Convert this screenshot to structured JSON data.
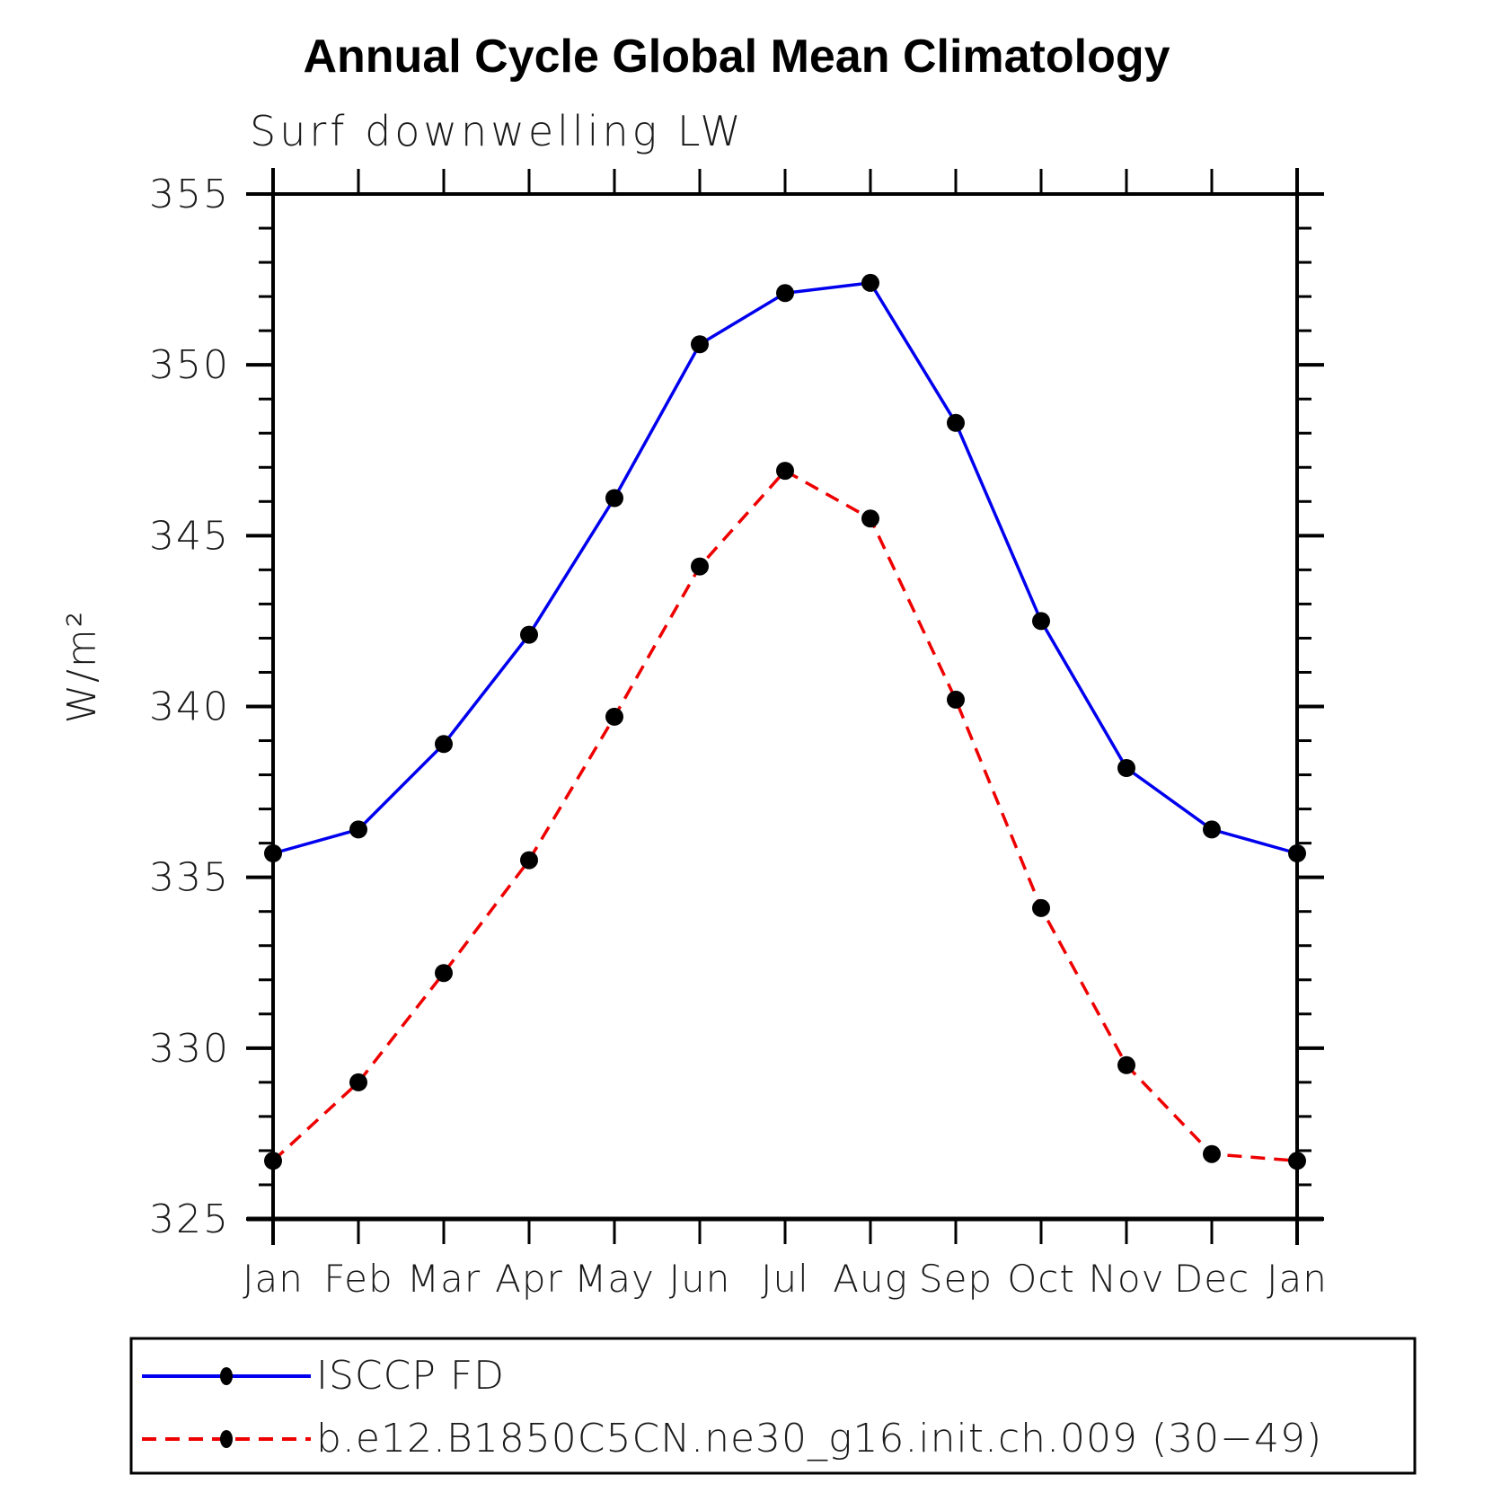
{
  "accent_colors": {
    "series1": "#0000ee",
    "series2": "#ee0000",
    "marker": "#000000",
    "axis": "#000000"
  },
  "chart_data": {
    "type": "line",
    "title": "Annual Cycle Global Mean Climatology",
    "subtitle": "Surf downwelling LW",
    "xlabel": "",
    "ylabel": "W/m²",
    "categories": [
      "Jan",
      "Feb",
      "Mar",
      "Apr",
      "May",
      "Jun",
      "Jul",
      "Aug",
      "Sep",
      "Oct",
      "Nov",
      "Dec",
      "Jan"
    ],
    "ylim": [
      325,
      355
    ],
    "ytick_major": [
      325,
      330,
      335,
      340,
      345,
      350,
      355
    ],
    "ytick_minor_step": 1,
    "grid": false,
    "legend_position": "bottom-left-box",
    "series": [
      {
        "name": "ISCCP FD",
        "color": "#0000ee",
        "line_style": "solid",
        "marker": "filled-circle",
        "marker_color": "#000000",
        "values": [
          335.7,
          336.4,
          338.9,
          342.1,
          346.1,
          350.6,
          352.1,
          352.4,
          348.3,
          342.5,
          338.2,
          336.4,
          335.7
        ]
      },
      {
        "name": "b.e12.B1850C5CN.ne30_g16.init.ch.009 (30−49)",
        "color": "#ee0000",
        "line_style": "dashed",
        "marker": "filled-circle",
        "marker_color": "#000000",
        "values": [
          326.7,
          329.0,
          332.2,
          335.5,
          339.7,
          344.1,
          346.9,
          345.5,
          340.2,
          334.1,
          329.5,
          326.9,
          326.7
        ]
      }
    ]
  }
}
